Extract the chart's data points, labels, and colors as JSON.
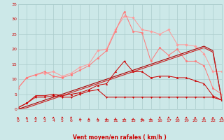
{
  "x": [
    0,
    1,
    2,
    3,
    4,
    5,
    6,
    7,
    8,
    9,
    10,
    11,
    12,
    13,
    14,
    15,
    16,
    17,
    18,
    19,
    20,
    21,
    22,
    23
  ],
  "series": [
    {
      "name": "light_pink_rafales",
      "color": "#ff9999",
      "linewidth": 0.7,
      "markersize": 1.8,
      "marker": "D",
      "y": [
        7.0,
        10.5,
        11.5,
        12.0,
        12.5,
        11.0,
        12.0,
        14.0,
        15.0,
        19.5,
        20.0,
        26.5,
        31.0,
        30.5,
        26.5,
        26.0,
        25.0,
        26.5,
        21.5,
        21.5,
        21.0,
        18.5,
        12.5,
        12.5
      ]
    },
    {
      "name": "pink_mid_rafales",
      "color": "#ff7777",
      "linewidth": 0.7,
      "markersize": 1.8,
      "marker": "o",
      "y": [
        7.0,
        10.5,
        11.5,
        12.5,
        11.0,
        10.5,
        11.5,
        13.0,
        14.5,
        17.0,
        19.5,
        26.0,
        32.5,
        26.0,
        25.5,
        16.0,
        20.5,
        18.0,
        20.0,
        16.0,
        16.0,
        14.5,
        7.0,
        5.0
      ]
    },
    {
      "name": "red_marker_line",
      "color": "#cc0000",
      "linewidth": 0.7,
      "markersize": 1.8,
      "marker": "^",
      "y": [
        0.5,
        2.0,
        4.5,
        4.5,
        5.0,
        4.5,
        5.0,
        5.5,
        6.5,
        8.0,
        8.5,
        12.5,
        16.0,
        12.5,
        12.5,
        10.5,
        11.0,
        11.0,
        10.5,
        10.5,
        9.5,
        8.5,
        4.5,
        3.0
      ]
    },
    {
      "name": "red_flat_line",
      "color": "#cc0000",
      "linewidth": 0.7,
      "markersize": 1.8,
      "marker": "v",
      "y": [
        0.5,
        2.0,
        4.0,
        4.0,
        4.5,
        4.0,
        4.0,
        5.0,
        6.0,
        6.5,
        4.0,
        4.0,
        4.0,
        4.0,
        4.0,
        4.0,
        4.0,
        4.0,
        4.0,
        4.0,
        4.0,
        4.0,
        4.0,
        3.0
      ]
    },
    {
      "name": "dark_red_slope_high",
      "color": "#aa0000",
      "linewidth": 0.8,
      "markersize": 0,
      "marker": null,
      "y": [
        0,
        1.0,
        2.0,
        3.0,
        4.0,
        5.0,
        6.0,
        7.0,
        8.0,
        9.0,
        10.0,
        11.0,
        12.0,
        13.0,
        14.0,
        15.0,
        16.0,
        17.0,
        18.0,
        19.0,
        20.0,
        21.0,
        19.5,
        3.0
      ]
    },
    {
      "name": "dark_red_slope_low",
      "color": "#cc2222",
      "linewidth": 0.8,
      "markersize": 0,
      "marker": null,
      "y": [
        0,
        0.5,
        1.5,
        2.5,
        3.5,
        4.5,
        5.5,
        6.5,
        7.5,
        8.5,
        9.5,
        10.5,
        11.5,
        12.5,
        13.5,
        14.5,
        15.5,
        16.5,
        17.5,
        18.5,
        19.5,
        20.5,
        19.0,
        3.0
      ]
    }
  ],
  "xlabel": "Vent moyen/en rafales ( km/h )",
  "xlim": [
    0,
    23
  ],
  "ylim": [
    0,
    35
  ],
  "yticks": [
    0,
    5,
    10,
    15,
    20,
    25,
    30,
    35
  ],
  "xticks": [
    0,
    1,
    2,
    3,
    4,
    5,
    6,
    7,
    8,
    9,
    10,
    11,
    12,
    13,
    14,
    15,
    16,
    17,
    18,
    19,
    20,
    21,
    22,
    23
  ],
  "bg_color": "#cce8e8",
  "grid_color": "#aacccc",
  "arrow_color": "#cc0000",
  "xlabel_color": "#cc0000",
  "tick_color": "#cc0000",
  "arrow_angles": [
    220,
    220,
    220,
    215,
    215,
    210,
    205,
    200,
    195,
    190,
    185,
    180,
    175,
    170,
    165,
    160,
    155,
    150,
    148,
    145,
    143,
    140,
    138,
    135
  ]
}
